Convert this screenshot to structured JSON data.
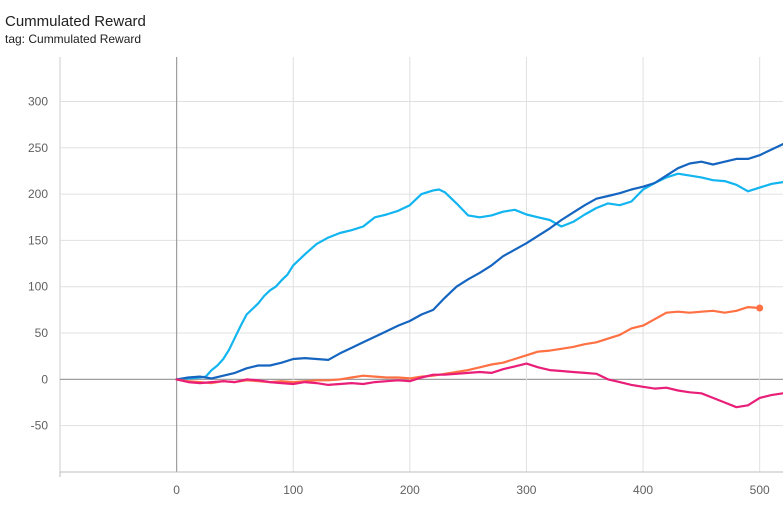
{
  "header": {
    "title": "Cummulated Reward",
    "subtitle": "tag: Cummulated Reward"
  },
  "toolbar": {
    "fit_icon": "fit-domain-icon",
    "log_icon": "log-scale-icon",
    "range_icon": "data-range-icon"
  },
  "chart_data": {
    "type": "line",
    "title": "Cummulated Reward",
    "subtitle": "tag: Cummulated Reward",
    "xlabel": "",
    "ylabel": "",
    "xlim": [
      -100,
      520
    ],
    "ylim": [
      -100,
      348
    ],
    "x_ticks": [
      0,
      100,
      200,
      300,
      400,
      500
    ],
    "y_ticks": [
      -50,
      0,
      50,
      100,
      150,
      200,
      250,
      300
    ],
    "grid": true,
    "legend": "none",
    "series": [
      {
        "color": "#12b5f0",
        "points": [
          [
            0,
            0
          ],
          [
            10,
            1
          ],
          [
            20,
            2
          ],
          [
            25,
            3
          ],
          [
            30,
            10
          ],
          [
            35,
            15
          ],
          [
            40,
            22
          ],
          [
            45,
            32
          ],
          [
            50,
            45
          ],
          [
            55,
            58
          ],
          [
            60,
            70
          ],
          [
            65,
            76
          ],
          [
            70,
            82
          ],
          [
            75,
            90
          ],
          [
            80,
            96
          ],
          [
            85,
            100
          ],
          [
            90,
            107
          ],
          [
            95,
            113
          ],
          [
            100,
            123
          ],
          [
            110,
            135
          ],
          [
            120,
            146
          ],
          [
            130,
            153
          ],
          [
            140,
            158
          ],
          [
            150,
            161
          ],
          [
            160,
            165
          ],
          [
            170,
            175
          ],
          [
            180,
            178
          ],
          [
            190,
            182
          ],
          [
            200,
            188
          ],
          [
            210,
            200
          ],
          [
            220,
            204
          ],
          [
            225,
            205
          ],
          [
            230,
            202
          ],
          [
            240,
            190
          ],
          [
            250,
            177
          ],
          [
            260,
            175
          ],
          [
            270,
            177
          ],
          [
            280,
            181
          ],
          [
            290,
            183
          ],
          [
            300,
            178
          ],
          [
            310,
            175
          ],
          [
            320,
            172
          ],
          [
            330,
            165
          ],
          [
            340,
            170
          ],
          [
            350,
            178
          ],
          [
            360,
            185
          ],
          [
            370,
            190
          ],
          [
            380,
            188
          ],
          [
            390,
            192
          ],
          [
            400,
            205
          ],
          [
            410,
            212
          ],
          [
            420,
            218
          ],
          [
            430,
            222
          ],
          [
            440,
            220
          ],
          [
            450,
            218
          ],
          [
            460,
            215
          ],
          [
            470,
            214
          ],
          [
            480,
            210
          ],
          [
            490,
            203
          ],
          [
            500,
            207
          ],
          [
            510,
            211
          ],
          [
            520,
            213
          ]
        ]
      },
      {
        "color": "#1565c0",
        "points": [
          [
            0,
            0
          ],
          [
            10,
            2
          ],
          [
            20,
            3
          ],
          [
            30,
            1
          ],
          [
            40,
            4
          ],
          [
            50,
            7
          ],
          [
            60,
            12
          ],
          [
            70,
            15
          ],
          [
            80,
            15
          ],
          [
            90,
            18
          ],
          [
            100,
            22
          ],
          [
            110,
            23
          ],
          [
            120,
            22
          ],
          [
            130,
            21
          ],
          [
            140,
            28
          ],
          [
            150,
            34
          ],
          [
            160,
            40
          ],
          [
            170,
            46
          ],
          [
            180,
            52
          ],
          [
            190,
            58
          ],
          [
            200,
            63
          ],
          [
            210,
            70
          ],
          [
            220,
            75
          ],
          [
            230,
            88
          ],
          [
            240,
            100
          ],
          [
            250,
            108
          ],
          [
            260,
            115
          ],
          [
            270,
            123
          ],
          [
            280,
            133
          ],
          [
            290,
            140
          ],
          [
            300,
            147
          ],
          [
            310,
            155
          ],
          [
            320,
            163
          ],
          [
            330,
            172
          ],
          [
            340,
            180
          ],
          [
            350,
            188
          ],
          [
            360,
            195
          ],
          [
            370,
            198
          ],
          [
            380,
            201
          ],
          [
            390,
            205
          ],
          [
            400,
            208
          ],
          [
            410,
            212
          ],
          [
            420,
            220
          ],
          [
            430,
            228
          ],
          [
            440,
            233
          ],
          [
            450,
            235
          ],
          [
            460,
            232
          ],
          [
            470,
            235
          ],
          [
            480,
            238
          ],
          [
            490,
            238
          ],
          [
            500,
            242
          ],
          [
            510,
            248
          ],
          [
            520,
            254
          ]
        ]
      },
      {
        "color": "#ff7043",
        "points": [
          [
            0,
            0
          ],
          [
            10,
            -2
          ],
          [
            20,
            -3
          ],
          [
            30,
            -4
          ],
          [
            40,
            -2
          ],
          [
            50,
            -3
          ],
          [
            60,
            -1
          ],
          [
            70,
            -2
          ],
          [
            80,
            -3
          ],
          [
            90,
            -2
          ],
          [
            100,
            -3
          ],
          [
            110,
            -2
          ],
          [
            120,
            -1
          ],
          [
            130,
            -1
          ],
          [
            140,
            0
          ],
          [
            150,
            2
          ],
          [
            160,
            4
          ],
          [
            170,
            3
          ],
          [
            180,
            2
          ],
          [
            190,
            2
          ],
          [
            200,
            1
          ],
          [
            210,
            3
          ],
          [
            220,
            4
          ],
          [
            230,
            6
          ],
          [
            240,
            8
          ],
          [
            250,
            10
          ],
          [
            260,
            13
          ],
          [
            270,
            16
          ],
          [
            280,
            18
          ],
          [
            290,
            22
          ],
          [
            300,
            26
          ],
          [
            310,
            30
          ],
          [
            320,
            31
          ],
          [
            330,
            33
          ],
          [
            340,
            35
          ],
          [
            350,
            38
          ],
          [
            360,
            40
          ],
          [
            370,
            44
          ],
          [
            380,
            48
          ],
          [
            390,
            55
          ],
          [
            400,
            58
          ],
          [
            410,
            65
          ],
          [
            420,
            72
          ],
          [
            430,
            73
          ],
          [
            440,
            72
          ],
          [
            450,
            73
          ],
          [
            460,
            74
          ],
          [
            470,
            72
          ],
          [
            480,
            74
          ],
          [
            490,
            78
          ],
          [
            500,
            77
          ]
        ]
      },
      {
        "color": "#e91e78",
        "points": [
          [
            0,
            0
          ],
          [
            10,
            -3
          ],
          [
            20,
            -4
          ],
          [
            30,
            -3
          ],
          [
            40,
            -2
          ],
          [
            50,
            -3
          ],
          [
            60,
            0
          ],
          [
            70,
            -1
          ],
          [
            80,
            -3
          ],
          [
            90,
            -4
          ],
          [
            100,
            -5
          ],
          [
            110,
            -3
          ],
          [
            120,
            -4
          ],
          [
            130,
            -6
          ],
          [
            140,
            -5
          ],
          [
            150,
            -4
          ],
          [
            160,
            -5
          ],
          [
            170,
            -3
          ],
          [
            180,
            -2
          ],
          [
            190,
            -1
          ],
          [
            200,
            -2
          ],
          [
            210,
            2
          ],
          [
            220,
            5
          ],
          [
            230,
            5
          ],
          [
            240,
            6
          ],
          [
            250,
            7
          ],
          [
            260,
            8
          ],
          [
            270,
            7
          ],
          [
            280,
            11
          ],
          [
            290,
            14
          ],
          [
            300,
            17
          ],
          [
            310,
            13
          ],
          [
            320,
            10
          ],
          [
            330,
            9
          ],
          [
            340,
            8
          ],
          [
            350,
            7
          ],
          [
            360,
            6
          ],
          [
            370,
            0
          ],
          [
            380,
            -3
          ],
          [
            390,
            -6
          ],
          [
            400,
            -8
          ],
          [
            410,
            -10
          ],
          [
            420,
            -9
          ],
          [
            430,
            -12
          ],
          [
            440,
            -14
          ],
          [
            450,
            -15
          ],
          [
            460,
            -20
          ],
          [
            470,
            -25
          ],
          [
            480,
            -30
          ],
          [
            490,
            -28
          ],
          [
            500,
            -20
          ],
          [
            510,
            -17
          ],
          [
            520,
            -15
          ]
        ]
      }
    ]
  }
}
